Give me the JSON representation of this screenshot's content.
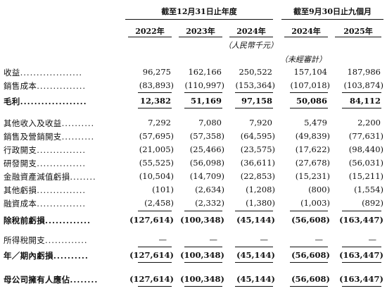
{
  "headers": {
    "group1": "截至12月31日止年度",
    "group2": "截至9月30日止九個月",
    "years": [
      "2022年",
      "2023年",
      "2024年",
      "2024年",
      "2025年"
    ],
    "unit": "（人民幣千元）",
    "unaudited": "（未經審計）"
  },
  "rows": [
    {
      "label": "收益",
      "dots": "...................",
      "values": [
        "96,275",
        "162,166",
        "250,522",
        "157,104",
        "187,986"
      ],
      "bold": false
    },
    {
      "label": "銷售成本",
      "dots": "...............",
      "values": [
        "(83,893)",
        "(110,997)",
        "(153,364)",
        "(107,018)",
        "(103,874)"
      ],
      "bold": false
    },
    {
      "label": "毛利",
      "dots": "...................",
      "values": [
        "12,382",
        "51,169",
        "97,158",
        "50,086",
        "84,112"
      ],
      "bold": true
    },
    {
      "label": "其他收入及收益",
      "dots": "..........",
      "values": [
        "7,292",
        "7,080",
        "7,920",
        "5,479",
        "2,200"
      ],
      "bold": false
    },
    {
      "label": "銷售及營銷開支",
      "dots": "..........",
      "values": [
        "(57,695)",
        "(57,358)",
        "(64,595)",
        "(49,839)",
        "(77,631)"
      ],
      "bold": false
    },
    {
      "label": "行政開支",
      "dots": "...............",
      "values": [
        "(21,005)",
        "(25,466)",
        "(23,575)",
        "(17,622)",
        "(98,440)"
      ],
      "bold": false
    },
    {
      "label": "研發開支",
      "dots": "...............",
      "values": [
        "(55,525)",
        "(56,098)",
        "(36,611)",
        "(27,678)",
        "(56,031)"
      ],
      "bold": false
    },
    {
      "label": "金融資產減值虧損",
      "dots": "........",
      "values": [
        "(10,504)",
        "(14,709)",
        "(22,853)",
        "(15,231)",
        "(15,211)"
      ],
      "bold": false
    },
    {
      "label": "其他虧損",
      "dots": "...............",
      "values": [
        "(101)",
        "(2,634)",
        "(1,208)",
        "(800)",
        "(1,554)"
      ],
      "bold": false
    },
    {
      "label": "融資成本",
      "dots": "...............",
      "values": [
        "(2,458)",
        "(2,332)",
        "(1,380)",
        "(1,003)",
        "(892)"
      ],
      "bold": false
    },
    {
      "label": "除稅前虧損",
      "dots": ".............",
      "values": [
        "(127,614)",
        "(100,348)",
        "(45,144)",
        "(56,608)",
        "(163,447)"
      ],
      "bold": true
    },
    {
      "label": "所得稅開支",
      "dots": ".............",
      "values": [
        "—",
        "—",
        "—",
        "—",
        "—"
      ],
      "bold": false
    },
    {
      "label": "年／期內虧損",
      "dots": "..........",
      "values": [
        "(127,614)",
        "(100,348)",
        "(45,144)",
        "(56,608)",
        "(163,447)"
      ],
      "bold": true
    },
    {
      "label": "母公司擁有人應佔",
      "dots": "........",
      "values": [
        "(127,614)",
        "(100,348)",
        "(45,144)",
        "(56,608)",
        "(163,447)"
      ],
      "bold": true
    }
  ]
}
